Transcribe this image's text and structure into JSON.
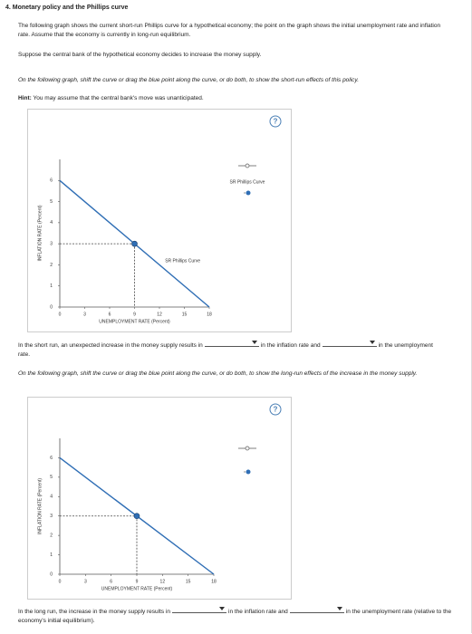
{
  "heading": "4. Monetary policy and the Phillips curve",
  "intro": "The following graph shows the current short-run Phillips curve for a hypothetical economy; the point on the graph shows the initial unemployment rate and inflation rate. Assume that the economy is currently in long-run equilibrium.",
  "scenario": "Suppose the central bank of the hypothetical economy decides to increase the money supply.",
  "part1": {
    "instruction": "On the following graph, shift the curve or drag the blue point along the curve, or do both, to show the short-run effects of this policy.",
    "hint_label": "Hint:",
    "hint": "You may assume that the central bank's move was unanticipated.",
    "graph": {
      "help": "?",
      "y_label": "INFLATION RATE (Percent)",
      "x_label": "UNEMPLOYMENT RATE (Percent)",
      "xlim": [
        0,
        18
      ],
      "ylim": [
        0,
        7
      ],
      "xticks": [
        0,
        3,
        6,
        9,
        12,
        15,
        18
      ],
      "yticks": [
        0,
        1,
        2,
        3,
        4,
        5,
        6
      ],
      "curve": {
        "name": "SR Phillips Curve",
        "x": [
          0,
          18
        ],
        "y": [
          6,
          0
        ]
      },
      "point": {
        "x": 9,
        "y": 3
      },
      "legend": "SR Phillips Curve"
    },
    "question": {
      "before": "In the short run, an unexpected increase in the money supply results in",
      "middle": "in the inflation rate and",
      "after": "in the unemployment rate."
    }
  },
  "part2": {
    "instruction": "On the following graph, shift the curve or drag the blue point along the curve, or do both, to show the long-run effects of the increase in the money supply.",
    "graph": {
      "help": "?",
      "y_label": "INFLATION RATE (Percent)",
      "x_label": "UNEMPLOYMENT RATE (Percent)",
      "xlim": [
        0,
        18
      ],
      "ylim": [
        0,
        7
      ],
      "xticks": [
        0,
        3,
        6,
        9,
        12,
        15,
        18
      ],
      "yticks": [
        0,
        1,
        2,
        3,
        4,
        5,
        6
      ],
      "curve": {
        "x": [
          0,
          18
        ],
        "y": [
          6,
          0
        ]
      },
      "point": {
        "x": 9,
        "y": 3
      }
    },
    "question": {
      "before": "In the long run, the increase in the money supply results in",
      "middle": "in the inflation rate and",
      "after": "in the unemployment rate (relative to the economy's initial equilibrium)."
    }
  }
}
